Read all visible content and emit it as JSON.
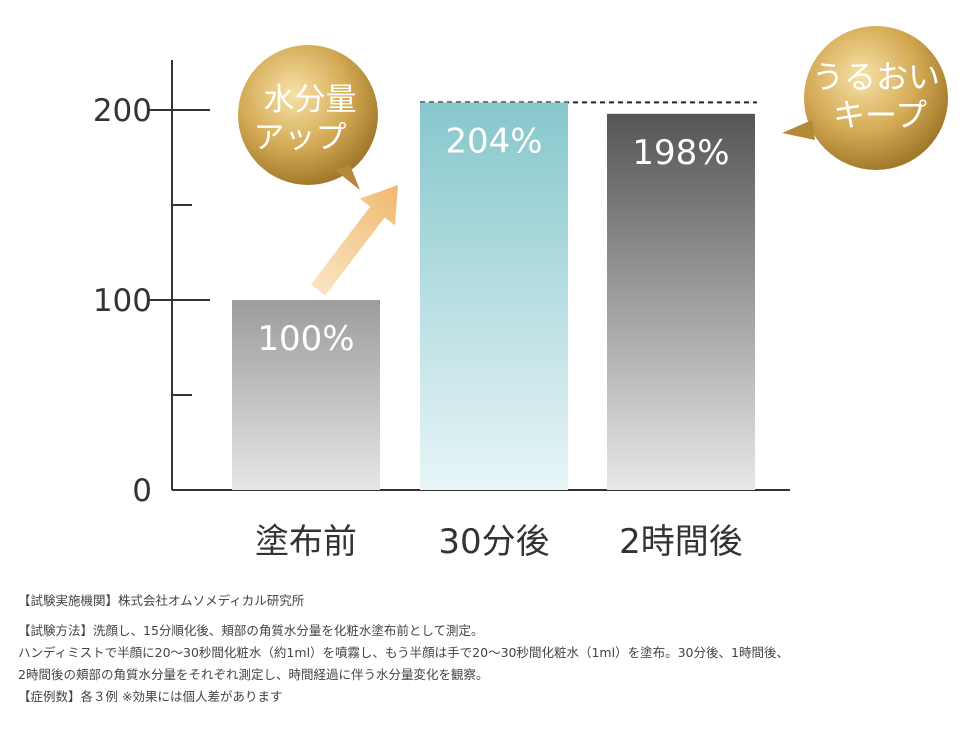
{
  "chart_data": {
    "type": "bar",
    "categories": [
      "塗布前",
      "30分後",
      "2時間後"
    ],
    "values": [
      100,
      204,
      198
    ],
    "value_labels": [
      "100%",
      "204%",
      "198%"
    ],
    "ylim": [
      0,
      230
    ],
    "yticks": [
      0,
      100,
      200
    ],
    "ytick_labels": [
      "0",
      "100",
      "200"
    ],
    "minor_ticks": [
      50,
      150
    ],
    "grid": false,
    "reference_line": 204,
    "bar_colors": [
      [
        "#9c9c9c",
        "#e6e6e6"
      ],
      [
        "#86c7cc",
        "#e8f5f7"
      ],
      [
        "#555555",
        "#e8e8e8"
      ]
    ],
    "badges": [
      {
        "lines": [
          "水分量",
          "アップ"
        ],
        "color": "#c9a24a"
      },
      {
        "lines": [
          "うるおい",
          "キープ"
        ],
        "color": "#c9a24a"
      }
    ],
    "arrow_color": "#f3c98a"
  },
  "notes": {
    "line1": "【試験実施機関】株式会社オムソメディカル研究所",
    "line2": "【試験方法】洗顔し、15分順化後、頬部の角質水分量を化粧水塗布前として測定。",
    "line3": "ハンディミストで半顔に20〜30秒間化粧水（約1ml）を噴霧し、もう半顔は手で20〜30秒間化粧水（1ml）を塗布。30分後、1時間後、",
    "line4": "2時間後の頬部の角質水分量をそれぞれ測定し、時間経過に伴う水分量変化を観察。",
    "line5": "【症例数】各３例 ※効果には個人差があります"
  }
}
